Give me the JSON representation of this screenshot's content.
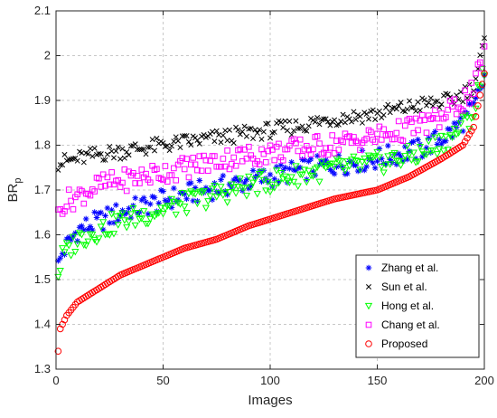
{
  "chart_data": {
    "type": "scatter",
    "xlabel": "Images",
    "ylabel_main": "BR",
    "ylabel_sub": "p",
    "xlim": [
      0,
      200
    ],
    "ylim": [
      1.3,
      2.1
    ],
    "xticks": [
      "0",
      "50",
      "100",
      "150",
      "200"
    ],
    "yticks": [
      "1.3",
      "1.4",
      "1.5",
      "1.6",
      "1.7",
      "1.8",
      "1.9",
      "2",
      "2.1"
    ],
    "grid": true,
    "legend_position": "bottom-right",
    "x": {
      "start": 1,
      "end": 200,
      "step": 1
    },
    "series": [
      {
        "name": "Zhang et al.",
        "marker": "asterisk",
        "color": "#0000ff",
        "anchors": [
          [
            1,
            1.53
          ],
          [
            3,
            1.56
          ],
          [
            10,
            1.61
          ],
          [
            30,
            1.65
          ],
          [
            60,
            1.69
          ],
          [
            90,
            1.72
          ],
          [
            120,
            1.75
          ],
          [
            150,
            1.77
          ],
          [
            170,
            1.79
          ],
          [
            185,
            1.83
          ],
          [
            195,
            1.88
          ],
          [
            200,
            1.95
          ]
        ],
        "noise": 0.025
      },
      {
        "name": "Sun et al.",
        "marker": "x",
        "color": "#000000",
        "anchors": [
          [
            1,
            1.76
          ],
          [
            20,
            1.78
          ],
          [
            50,
            1.8
          ],
          [
            80,
            1.82
          ],
          [
            110,
            1.84
          ],
          [
            130,
            1.86
          ],
          [
            150,
            1.87
          ],
          [
            170,
            1.89
          ],
          [
            185,
            1.9
          ],
          [
            195,
            1.93
          ],
          [
            200,
            2.03
          ]
        ],
        "noise": 0.018
      },
      {
        "name": "Hong et al.",
        "marker": "triangle-down",
        "color": "#00ff00",
        "anchors": [
          [
            1,
            1.51
          ],
          [
            3,
            1.55
          ],
          [
            10,
            1.59
          ],
          [
            30,
            1.63
          ],
          [
            60,
            1.67
          ],
          [
            90,
            1.71
          ],
          [
            120,
            1.74
          ],
          [
            150,
            1.76
          ],
          [
            170,
            1.78
          ],
          [
            185,
            1.82
          ],
          [
            195,
            1.87
          ],
          [
            200,
            1.98
          ]
        ],
        "noise": 0.025
      },
      {
        "name": "Chang et al.",
        "marker": "square",
        "color": "#ff00ff",
        "anchors": [
          [
            1,
            1.64
          ],
          [
            3,
            1.67
          ],
          [
            20,
            1.71
          ],
          [
            50,
            1.74
          ],
          [
            80,
            1.77
          ],
          [
            110,
            1.79
          ],
          [
            140,
            1.81
          ],
          [
            160,
            1.83
          ],
          [
            180,
            1.86
          ],
          [
            195,
            1.92
          ],
          [
            200,
            2.01
          ]
        ],
        "noise": 0.025
      },
      {
        "name": "Proposed",
        "marker": "circle",
        "color": "#ff0000",
        "anchors": [
          [
            1,
            1.34
          ],
          [
            2,
            1.39
          ],
          [
            5,
            1.42
          ],
          [
            10,
            1.45
          ],
          [
            20,
            1.48
          ],
          [
            30,
            1.51
          ],
          [
            40,
            1.53
          ],
          [
            50,
            1.55
          ],
          [
            60,
            1.57
          ],
          [
            75,
            1.59
          ],
          [
            90,
            1.62
          ],
          [
            110,
            1.65
          ],
          [
            130,
            1.68
          ],
          [
            150,
            1.7
          ],
          [
            165,
            1.73
          ],
          [
            180,
            1.77
          ],
          [
            190,
            1.8
          ],
          [
            195,
            1.84
          ],
          [
            200,
            1.96
          ]
        ],
        "noise": 0
      }
    ]
  }
}
